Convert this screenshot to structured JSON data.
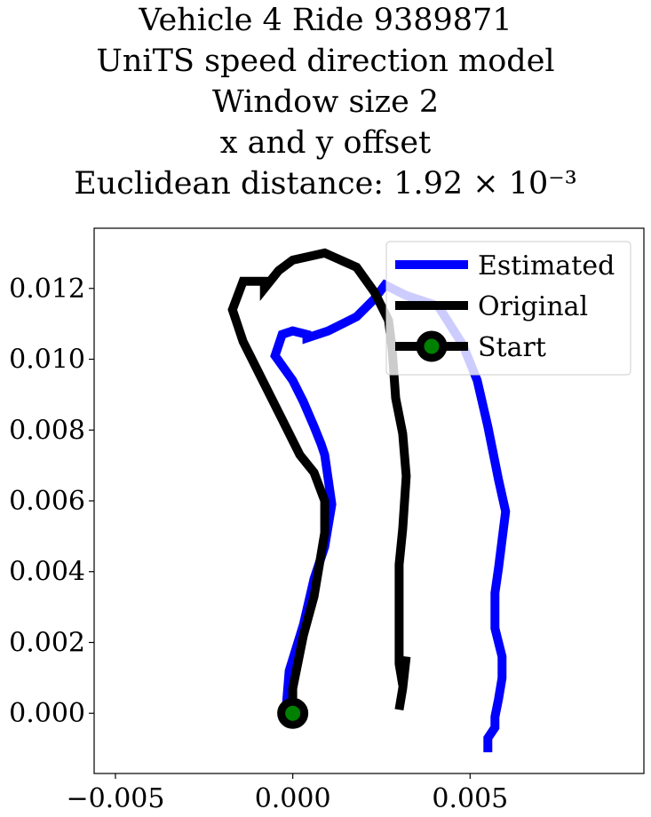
{
  "chart_data": {
    "type": "line",
    "title_lines": [
      "Vehicle 4 Ride 9389871",
      "UniTS speed direction model",
      "Window size 2",
      "x and y offset",
      "Euclidean distance: 1.92 × 10⁻³"
    ],
    "xlim": [
      -0.0056,
      0.0099
    ],
    "ylim": [
      -0.0017,
      0.0137
    ],
    "xticks": [
      -0.005,
      0.0,
      0.005
    ],
    "xtick_labels": [
      "−0.005",
      "0.000",
      "0.005"
    ],
    "yticks": [
      0.0,
      0.002,
      0.004,
      0.006,
      0.008,
      0.01,
      0.012
    ],
    "ytick_labels": [
      "0.000",
      "0.002",
      "0.004",
      "0.006",
      "0.008",
      "0.010",
      "0.012"
    ],
    "grid": false,
    "legend_position": "top-right",
    "series": [
      {
        "name": "Estimated",
        "color": "#0000ff",
        "x": [
          -0.0002,
          -0.0001,
          0.0003,
          0.0006,
          0.0009,
          0.0011,
          0.001,
          0.0009,
          0.0008,
          0.0006,
          0.0003,
          0.0,
          -0.0005,
          -0.0003,
          0.0,
          0.0004,
          0.0004,
          0.001,
          0.0018,
          0.0023,
          0.0026,
          0.0032,
          0.0041,
          0.0048,
          0.0052,
          0.0055,
          0.0058,
          0.006,
          0.0059,
          0.0058,
          0.0057,
          0.0057,
          0.0059,
          0.0059,
          0.0058,
          0.0057,
          0.0057,
          0.0055,
          0.0055
        ],
        "y": [
          0.0,
          0.0012,
          0.0025,
          0.0038,
          0.0047,
          0.0059,
          0.0066,
          0.0073,
          0.0076,
          0.0081,
          0.0088,
          0.0094,
          0.0101,
          0.0107,
          0.0108,
          0.0107,
          0.0106,
          0.0108,
          0.0112,
          0.0117,
          0.0121,
          0.0118,
          0.0115,
          0.0104,
          0.0094,
          0.0081,
          0.0066,
          0.0057,
          0.0049,
          0.0041,
          0.0034,
          0.0024,
          0.0016,
          0.001,
          0.0004,
          -0.0001,
          -0.0004,
          -0.0007,
          -0.0011
        ]
      },
      {
        "name": "Original",
        "color": "#000000",
        "x": [
          0.0,
          0.0,
          0.0003,
          0.0006,
          0.0008,
          0.0009,
          0.0009,
          0.0006,
          0.0002,
          -0.0003,
          -0.0009,
          -0.0014,
          -0.0017,
          -0.0014,
          -0.0008,
          -0.0008,
          -0.0004,
          0.0,
          0.0009,
          0.0018,
          0.0023,
          0.0027,
          0.0028,
          0.0029,
          0.0031,
          0.0032,
          0.0031,
          0.003,
          0.003,
          0.003,
          0.0031,
          0.0032,
          0.0031,
          0.003
        ],
        "y": [
          0.0,
          0.0007,
          0.0022,
          0.0033,
          0.0045,
          0.0051,
          0.006,
          0.0068,
          0.0073,
          0.0083,
          0.0095,
          0.0105,
          0.0114,
          0.0122,
          0.0122,
          0.012,
          0.0125,
          0.0128,
          0.013,
          0.0126,
          0.0119,
          0.0111,
          0.0103,
          0.0089,
          0.0079,
          0.0067,
          0.0052,
          0.0042,
          0.0025,
          0.0014,
          0.0008,
          0.0016,
          0.0007,
          0.0001
        ]
      },
      {
        "name": "Start",
        "color": "#000000",
        "marker_face": "#008000",
        "x": [
          0.0
        ],
        "y": [
          0.0
        ]
      }
    ]
  }
}
